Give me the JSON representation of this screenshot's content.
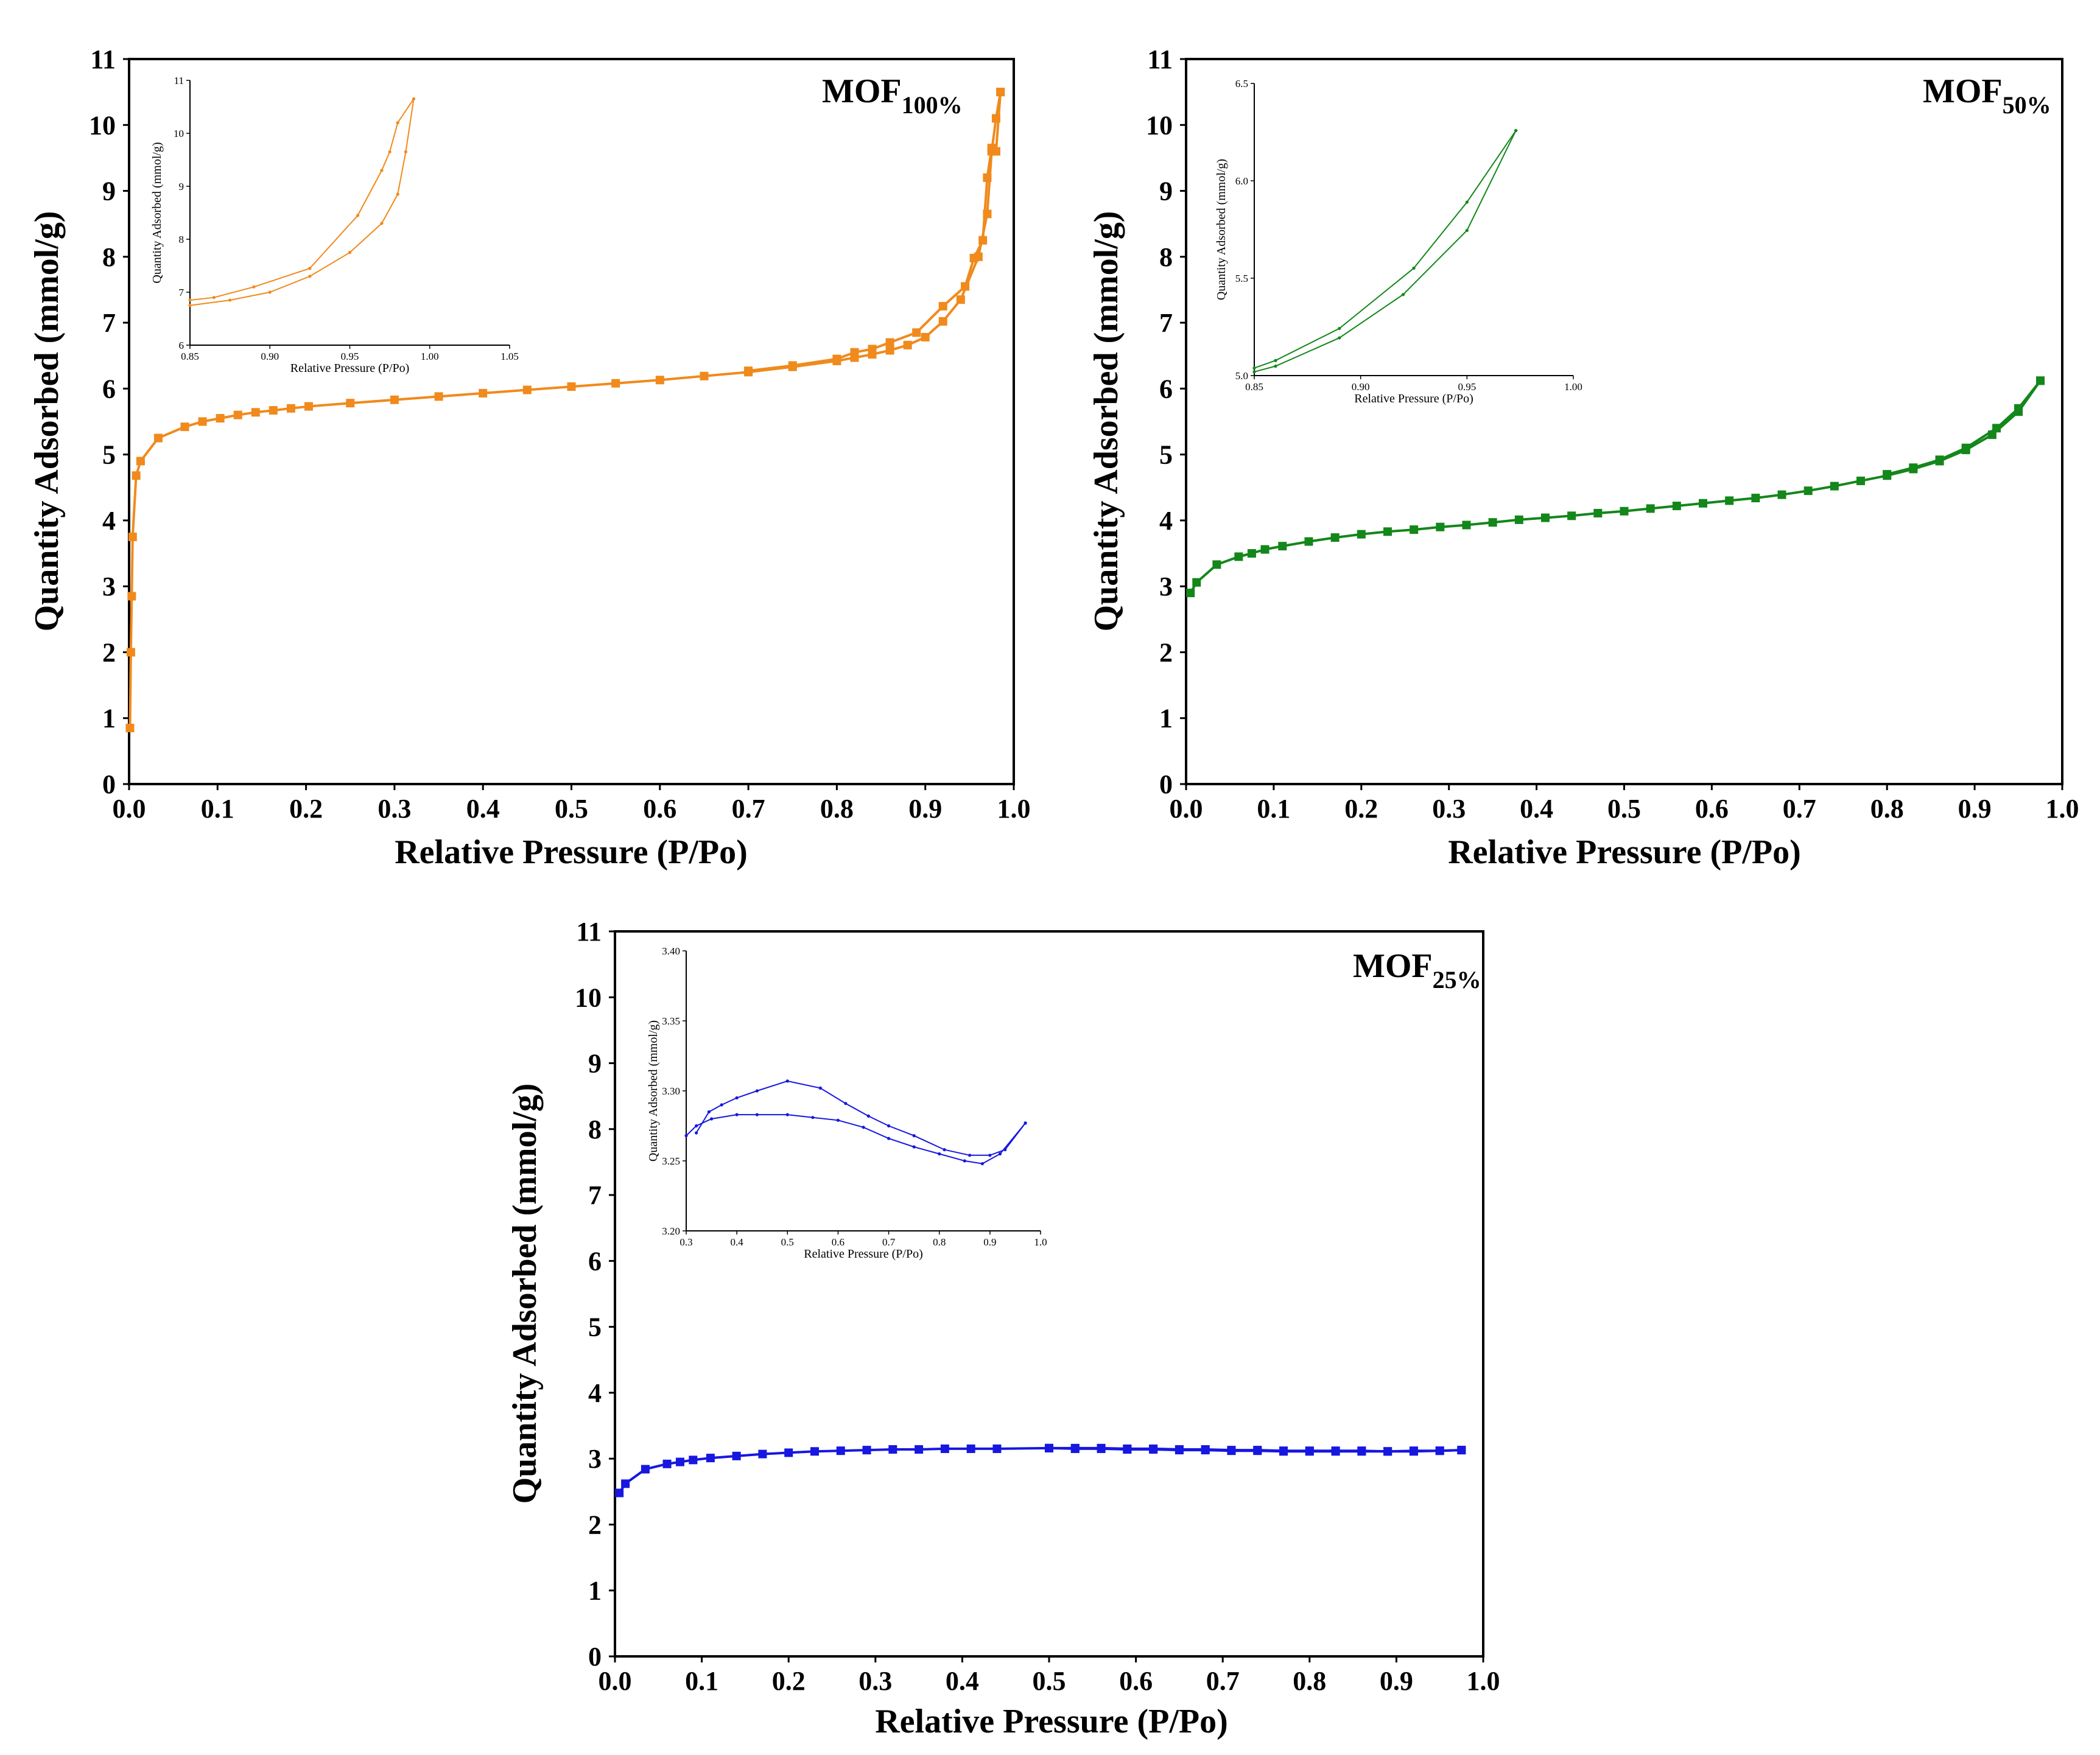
{
  "chart_data": [
    {
      "type": "line",
      "id": "mof100",
      "sample_label": "MOF",
      "sample_subscript": "100%",
      "color": "#f08a1c",
      "xlabel": "Relative Pressure (P/Po)",
      "ylabel": "Quantity Adsorbed (mmol/g)",
      "xlim": [
        0,
        1
      ],
      "ylim": [
        0,
        11
      ],
      "xticks": [
        "0.0",
        "0.1",
        "0.2",
        "0.3",
        "0.4",
        "0.5",
        "0.6",
        "0.7",
        "0.8",
        "0.9",
        "1.0"
      ],
      "yticks": [
        "0",
        "1",
        "2",
        "3",
        "4",
        "5",
        "6",
        "7",
        "8",
        "9",
        "10",
        "11"
      ],
      "series": [
        {
          "name": "adsorption",
          "x": [
            0.001,
            0.002,
            0.003,
            0.004,
            0.008,
            0.013,
            0.033,
            0.063,
            0.083,
            0.103,
            0.123,
            0.143,
            0.163,
            0.183,
            0.203,
            0.25,
            0.3,
            0.35,
            0.4,
            0.45,
            0.5,
            0.55,
            0.6,
            0.65,
            0.7,
            0.75,
            0.8,
            0.82,
            0.84,
            0.86,
            0.88,
            0.9,
            0.92,
            0.94,
            0.96,
            0.97,
            0.975,
            0.98,
            0.985
          ],
          "y": [
            0.85,
            2.0,
            2.85,
            3.75,
            4.68,
            4.9,
            5.25,
            5.42,
            5.5,
            5.55,
            5.6,
            5.64,
            5.67,
            5.7,
            5.73,
            5.78,
            5.83,
            5.88,
            5.93,
            5.98,
            6.03,
            6.08,
            6.13,
            6.19,
            6.25,
            6.33,
            6.42,
            6.47,
            6.52,
            6.58,
            6.66,
            6.78,
            7.02,
            7.35,
            8.0,
            8.65,
            9.6,
            10.1,
            10.5
          ]
        },
        {
          "name": "desorption",
          "x": [
            0.985,
            0.98,
            0.975,
            0.97,
            0.965,
            0.955,
            0.945,
            0.92,
            0.89,
            0.86,
            0.84,
            0.82,
            0.8,
            0.75,
            0.7
          ],
          "y": [
            10.5,
            9.6,
            9.65,
            9.2,
            8.25,
            7.98,
            7.55,
            7.25,
            6.85,
            6.7,
            6.6,
            6.55,
            6.45,
            6.35,
            6.27
          ]
        }
      ],
      "inset": {
        "xlabel": "Relative Pressure (P/Po)",
        "ylabel": "Quantity Adsorbed (mmol/g)",
        "xlim": [
          0.85,
          1.05
        ],
        "ylim": [
          6,
          11
        ],
        "xticks": [
          "0.85",
          "0.90",
          "0.95",
          "1.00",
          "1.05"
        ],
        "yticks": [
          "6",
          "7",
          "8",
          "9",
          "10",
          "11"
        ],
        "series": [
          {
            "name": "adsorption",
            "x": [
              0.85,
              0.875,
              0.9,
              0.925,
              0.95,
              0.97,
              0.98,
              0.985,
              0.99
            ],
            "y": [
              6.75,
              6.85,
              7.0,
              7.3,
              7.75,
              8.3,
              8.85,
              9.65,
              10.65
            ]
          },
          {
            "name": "desorption",
            "x": [
              0.99,
              0.98,
              0.975,
              0.97,
              0.955,
              0.925,
              0.89,
              0.865,
              0.85
            ],
            "y": [
              10.65,
              10.2,
              9.65,
              9.3,
              8.45,
              7.45,
              7.1,
              6.9,
              6.85
            ]
          }
        ]
      }
    },
    {
      "type": "line",
      "id": "mof50",
      "sample_label": "MOF",
      "sample_subscript": "50%",
      "color": "#13871a",
      "xlabel": "Relative Pressure (P/Po)",
      "ylabel": "Quantity Adsorbed (mmol/g)",
      "xlim": [
        0,
        1
      ],
      "ylim": [
        0,
        11
      ],
      "xticks": [
        "0.0",
        "0.1",
        "0.2",
        "0.3",
        "0.4",
        "0.5",
        "0.6",
        "0.7",
        "0.8",
        "0.9",
        "1.0"
      ],
      "yticks": [
        "0",
        "1",
        "2",
        "3",
        "4",
        "5",
        "6",
        "7",
        "8",
        "9",
        "10",
        "11"
      ],
      "series": [
        {
          "name": "adsorption",
          "x": [
            0.005,
            0.012,
            0.035,
            0.06,
            0.075,
            0.09,
            0.11,
            0.14,
            0.17,
            0.2,
            0.23,
            0.26,
            0.29,
            0.32,
            0.35,
            0.38,
            0.41,
            0.44,
            0.47,
            0.5,
            0.53,
            0.56,
            0.59,
            0.62,
            0.65,
            0.68,
            0.71,
            0.74,
            0.77,
            0.8,
            0.83,
            0.86,
            0.89,
            0.92,
            0.95,
            0.975
          ],
          "y": [
            2.9,
            3.06,
            3.33,
            3.45,
            3.5,
            3.56,
            3.61,
            3.68,
            3.74,
            3.79,
            3.83,
            3.86,
            3.9,
            3.93,
            3.97,
            4.01,
            4.04,
            4.07,
            4.11,
            4.14,
            4.18,
            4.22,
            4.26,
            4.3,
            4.34,
            4.39,
            4.45,
            4.52,
            4.6,
            4.68,
            4.78,
            4.9,
            5.07,
            5.3,
            5.65,
            6.12
          ]
        },
        {
          "name": "desorption",
          "x": [
            0.975,
            0.95,
            0.925,
            0.89,
            0.86,
            0.83,
            0.8
          ],
          "y": [
            6.12,
            5.7,
            5.4,
            5.1,
            4.92,
            4.8,
            4.7
          ]
        }
      ],
      "inset": {
        "xlabel": "Relative Pressure (P/Po)",
        "ylabel": "Quantity Adsorbed (mmol/g)",
        "xlim": [
          0.85,
          1.0
        ],
        "ylim": [
          4.95,
          6.5
        ],
        "xticks": [
          "0.85",
          "0.90",
          "0.95",
          "1.00"
        ],
        "yticks": [
          "5.0",
          "5.5",
          "6.0",
          "6.5"
        ],
        "series": [
          {
            "name": "adsorption",
            "x": [
              0.85,
              0.86,
              0.89,
              0.92,
              0.95,
              0.973
            ],
            "y": [
              4.97,
              5.0,
              5.15,
              5.38,
              5.72,
              6.25
            ]
          },
          {
            "name": "desorption",
            "x": [
              0.973,
              0.95,
              0.925,
              0.89,
              0.86,
              0.85
            ],
            "y": [
              6.25,
              5.87,
              5.52,
              5.2,
              5.03,
              4.99
            ]
          }
        ]
      }
    },
    {
      "type": "line",
      "id": "mof25",
      "sample_label": "MOF",
      "sample_subscript": "25%",
      "color": "#1717e0",
      "xlabel": "Relative Pressure (P/Po)",
      "ylabel": "Quantity Adsorbed (mmol/g)",
      "xlim": [
        0,
        1
      ],
      "ylim": [
        0,
        11
      ],
      "xticks": [
        "0.0",
        "0.1",
        "0.2",
        "0.3",
        "0.4",
        "0.5",
        "0.6",
        "0.7",
        "0.8",
        "0.9",
        "1.0"
      ],
      "yticks": [
        "0",
        "1",
        "2",
        "3",
        "4",
        "5",
        "6",
        "7",
        "8",
        "9",
        "10",
        "11"
      ],
      "series": [
        {
          "name": "adsorption",
          "x": [
            0.005,
            0.012,
            0.035,
            0.06,
            0.075,
            0.09,
            0.11,
            0.14,
            0.17,
            0.2,
            0.23,
            0.26,
            0.29,
            0.32,
            0.35,
            0.38,
            0.41,
            0.44,
            0.5,
            0.53,
            0.56,
            0.59,
            0.62,
            0.65,
            0.68,
            0.71,
            0.74,
            0.77,
            0.8,
            0.83,
            0.86,
            0.89,
            0.92,
            0.95,
            0.975
          ],
          "y": [
            2.48,
            2.62,
            2.84,
            2.92,
            2.95,
            2.98,
            3.01,
            3.04,
            3.07,
            3.09,
            3.11,
            3.12,
            3.13,
            3.14,
            3.14,
            3.15,
            3.15,
            3.15,
            3.16,
            3.15,
            3.15,
            3.14,
            3.14,
            3.13,
            3.13,
            3.12,
            3.12,
            3.11,
            3.11,
            3.11,
            3.11,
            3.11,
            3.11,
            3.12,
            3.13
          ]
        },
        {
          "name": "desorption",
          "x": [
            0.975,
            0.95,
            0.92,
            0.89,
            0.86,
            0.83,
            0.8,
            0.77,
            0.74,
            0.71,
            0.68,
            0.65,
            0.62,
            0.59,
            0.56,
            0.53,
            0.5
          ],
          "y": [
            3.13,
            3.12,
            3.12,
            3.11,
            3.12,
            3.12,
            3.12,
            3.12,
            3.13,
            3.13,
            3.14,
            3.14,
            3.15,
            3.15,
            3.16,
            3.16,
            3.16
          ]
        }
      ],
      "inset": {
        "xlabel": "Relative Pressure (P/Po)",
        "ylabel": "Quantity Adsorbed (mmol/g)",
        "xlim": [
          0.3,
          1.0
        ],
        "ylim": [
          3.2,
          3.4
        ],
        "xticks": [
          "0.3",
          "0.4",
          "0.5",
          "0.6",
          "0.7",
          "0.8",
          "0.9",
          "1.0"
        ],
        "yticks": [
          "3.20",
          "3.25",
          "3.30",
          "3.35",
          "3.40"
        ],
        "series": [
          {
            "name": "adsorption",
            "x": [
              0.3,
              0.32,
              0.35,
              0.4,
              0.44,
              0.5,
              0.55,
              0.6,
              0.65,
              0.7,
              0.75,
              0.8,
              0.85,
              0.885,
              0.92,
              0.97
            ],
            "y": [
              3.268,
              3.275,
              3.28,
              3.283,
              3.283,
              3.283,
              3.281,
              3.279,
              3.274,
              3.266,
              3.26,
              3.255,
              3.25,
              3.248,
              3.255,
              3.277
            ]
          },
          {
            "name": "desorption",
            "x": [
              0.97,
              0.93,
              0.9,
              0.86,
              0.81,
              0.75,
              0.7,
              0.66,
              0.615,
              0.565,
              0.5,
              0.44,
              0.4,
              0.37,
              0.345,
              0.32
            ],
            "y": [
              3.277,
              3.258,
              3.254,
              3.254,
              3.258,
              3.268,
              3.275,
              3.282,
              3.291,
              3.302,
              3.307,
              3.3,
              3.295,
              3.29,
              3.285,
              3.27
            ]
          }
        ]
      }
    }
  ]
}
